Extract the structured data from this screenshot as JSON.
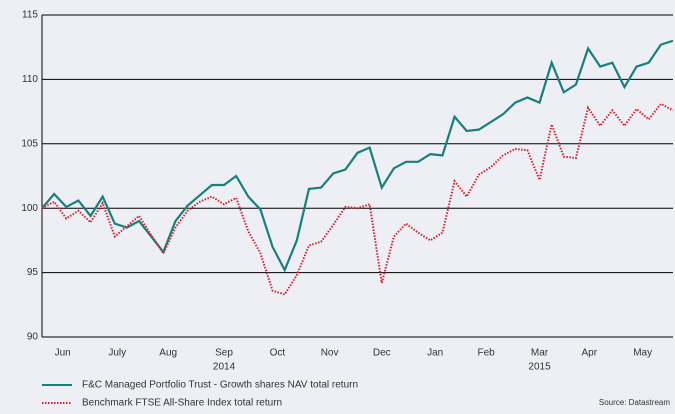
{
  "chart_data": {
    "type": "line",
    "x": [
      0,
      1,
      2,
      3,
      4,
      5,
      6,
      7,
      8,
      9,
      10,
      11,
      12,
      13,
      14,
      15,
      16,
      17,
      18,
      19,
      20,
      21,
      22,
      23,
      24,
      25,
      26,
      27,
      28,
      29,
      30,
      31,
      32,
      33,
      34,
      35,
      36,
      37,
      38,
      39,
      40,
      41,
      42,
      43,
      44,
      45,
      46,
      47,
      48,
      49,
      50,
      51,
      52
    ],
    "xlim": [
      0,
      52
    ],
    "xticks": [
      {
        "value": 1.7,
        "label": "Jun"
      },
      {
        "value": 6.2,
        "label": "July"
      },
      {
        "value": 10.4,
        "label": "Aug"
      },
      {
        "value": 15.0,
        "label": "Sep"
      },
      {
        "value": 19.4,
        "label": "Oct"
      },
      {
        "value": 23.7,
        "label": "Nov"
      },
      {
        "value": 28.0,
        "label": "Dec"
      },
      {
        "value": 32.4,
        "label": "Jan"
      },
      {
        "value": 36.6,
        "label": "Feb"
      },
      {
        "value": 41.0,
        "label": "Mar"
      },
      {
        "value": 45.1,
        "label": "Apr"
      },
      {
        "value": 49.5,
        "label": "May"
      }
    ],
    "year_labels": [
      {
        "value": 15.0,
        "label": "2014"
      },
      {
        "value": 41.0,
        "label": "2015"
      }
    ],
    "ylim": [
      90,
      115
    ],
    "yticks": [
      90,
      95,
      100,
      105,
      110,
      115
    ],
    "grid": true,
    "series": [
      {
        "name": "F&C Managed Portfolio Trust - Growth shares NAV total return",
        "color": "#17807e",
        "style": "solid",
        "values": [
          100.0,
          101.1,
          100.1,
          100.6,
          99.4,
          100.9,
          98.8,
          98.5,
          99.0,
          97.8,
          96.6,
          99.0,
          100.2,
          101.0,
          101.8,
          101.8,
          102.5,
          100.9,
          99.9,
          97.0,
          95.2,
          97.5,
          101.5,
          101.6,
          102.7,
          103.0,
          104.3,
          104.7,
          101.6,
          103.1,
          103.6,
          103.6,
          104.2,
          104.1,
          107.1,
          106.0,
          106.1,
          106.7,
          107.3,
          108.2,
          108.6,
          108.2,
          111.3,
          109.0,
          109.6,
          112.4,
          111.0,
          111.3,
          109.4,
          111.0,
          111.3,
          112.7,
          113.0
        ]
      },
      {
        "name": "Benchmark FTSE All-Share Index total return",
        "color": "#d4202a",
        "style": "dotted",
        "values": [
          100.0,
          100.5,
          99.2,
          99.8,
          98.9,
          100.4,
          97.8,
          98.6,
          99.4,
          97.9,
          96.5,
          98.5,
          99.8,
          100.5,
          100.9,
          100.3,
          100.8,
          98.2,
          96.5,
          93.6,
          93.3,
          94.8,
          97.1,
          97.4,
          98.7,
          100.1,
          100.0,
          100.3,
          94.2,
          97.8,
          98.8,
          98.1,
          97.5,
          98.1,
          102.1,
          100.9,
          102.6,
          103.2,
          104.1,
          104.6,
          104.5,
          102.2,
          106.5,
          104.0,
          103.9,
          107.8,
          106.4,
          107.6,
          106.4,
          107.7,
          106.9,
          108.1,
          107.6
        ]
      }
    ],
    "source": "Source: Datastream"
  }
}
